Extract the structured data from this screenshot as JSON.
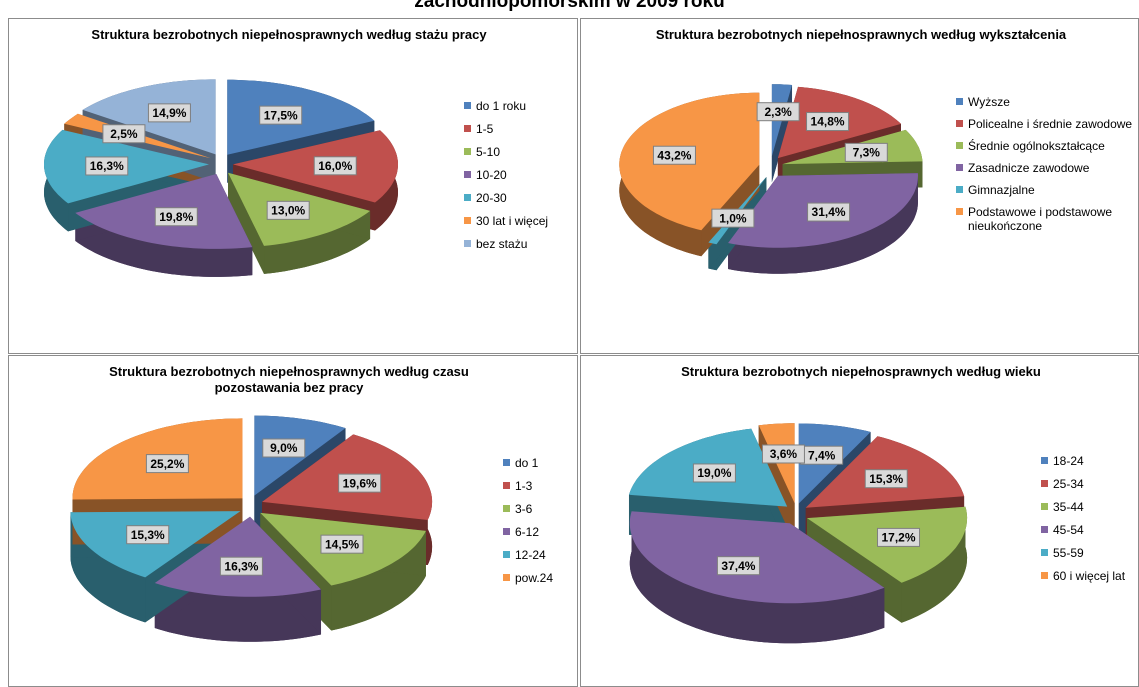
{
  "page_title": "zachodniopomorskim w 2009 roku",
  "chart_data": [
    {
      "type": "pie",
      "title": "Struktura bezrobotnych niepełnosprawnych według stażu pracy",
      "categories": [
        "do 1 roku",
        "1-5",
        "5-10",
        "10-20",
        "20-30",
        "30 lat i więcej",
        "bez stażu"
      ],
      "values": [
        17.5,
        16.0,
        13.0,
        19.8,
        16.3,
        2.5,
        14.9
      ],
      "value_labels": [
        "17,5%",
        "16,0%",
        "13,0%",
        "19,8%",
        "16,3%",
        "2,5%",
        "14,9%"
      ],
      "colors": [
        "#4f81bd",
        "#c0504d",
        "#9bbb59",
        "#8064a2",
        "#4bacc6",
        "#f79646",
        "#95b3d7"
      ]
    },
    {
      "type": "pie",
      "title": "Struktura bezrobotnych niepełnosprawnych według wykształcenia",
      "categories": [
        "Wyższe",
        "Policealne i średnie zawodowe",
        "Średnie ogólnokształcące",
        "Zasadnicze zawodowe",
        "Gimnazjalne",
        "Podstawowe i podstawowe nieukończone"
      ],
      "values": [
        2.3,
        14.8,
        7.3,
        31.4,
        1.0,
        43.2
      ],
      "value_labels": [
        "2,3%",
        "14,8%",
        "7,3%",
        "31,4%",
        "1,0%",
        "43,2%"
      ],
      "colors": [
        "#4f81bd",
        "#c0504d",
        "#9bbb59",
        "#8064a2",
        "#4bacc6",
        "#f79646"
      ]
    },
    {
      "type": "pie",
      "title": "Struktura bezrobotnych niepełnosprawnych według czasu pozostawania bez pracy",
      "categories": [
        "do 1",
        "1-3",
        "3-6",
        "6-12",
        "12-24",
        "pow.24"
      ],
      "values": [
        9.0,
        19.6,
        14.5,
        16.3,
        15.3,
        25.2
      ],
      "value_labels": [
        "9,0%",
        "19,6%",
        "14,5%",
        "16,3%",
        "15,3%",
        "25,2%"
      ],
      "colors": [
        "#4f81bd",
        "#c0504d",
        "#9bbb59",
        "#8064a2",
        "#4bacc6",
        "#f79646"
      ]
    },
    {
      "type": "pie",
      "title": "Struktura bezrobotnych niepełnosprawnych według wieku",
      "categories": [
        "18-24",
        "25-34",
        "35-44",
        "45-54",
        "55-59",
        "60 i więcej lat"
      ],
      "values": [
        7.4,
        15.3,
        17.2,
        37.4,
        19.0,
        3.6
      ],
      "value_labels": [
        "7,4%",
        "15,3%",
        "17,2%",
        "37,4%",
        "19,0%",
        "3,6%"
      ],
      "colors": [
        "#4f81bd",
        "#c0504d",
        "#9bbb59",
        "#8064a2",
        "#4bacc6",
        "#f79646"
      ]
    }
  ]
}
